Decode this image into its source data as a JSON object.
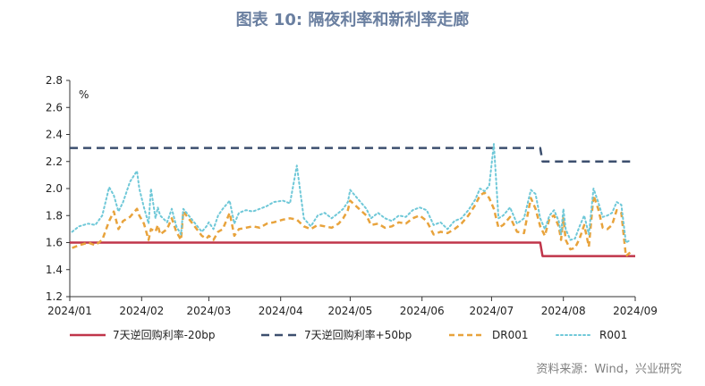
{
  "title": "图表 10: 隔夜利率和新利率走廊",
  "source": "资料来源：Wind，兴业研究",
  "chart_data": {
    "type": "line",
    "unit_label": "%",
    "ylim": [
      1.2,
      2.8
    ],
    "yticks": [
      "1.2",
      "1.4",
      "1.6",
      "1.8",
      "2.0",
      "2.2",
      "2.4",
      "2.6",
      "2.8"
    ],
    "xlim": [
      "2024-01-01",
      "2024-09-01"
    ],
    "xticks": [
      {
        "date": "2024-01-01",
        "label": "2024/01"
      },
      {
        "date": "2024-02-01",
        "label": "2024/02"
      },
      {
        "date": "2024-03-01",
        "label": "2024/03"
      },
      {
        "date": "2024-04-01",
        "label": "2024/04"
      },
      {
        "date": "2024-05-01",
        "label": "2024/05"
      },
      {
        "date": "2024-06-01",
        "label": "2024/06"
      },
      {
        "date": "2024-07-01",
        "label": "2024/07"
      },
      {
        "date": "2024-08-01",
        "label": "2024/08"
      },
      {
        "date": "2024-09-01",
        "label": "2024/09"
      }
    ],
    "grid": false,
    "legend_position": "bottom",
    "series": [
      {
        "name": "7天逆回购利率-20bp",
        "color": "#c0354a",
        "style": "solid",
        "points": [
          [
            "2024-01-01",
            1.6
          ],
          [
            "2024-07-22",
            1.6
          ],
          [
            "2024-07-23",
            1.5
          ],
          [
            "2024-09-01",
            1.5
          ]
        ]
      },
      {
        "name": "7天逆回购利率+50bp",
        "color": "#3c4f6e",
        "style": "dash",
        "points": [
          [
            "2024-01-01",
            2.3
          ],
          [
            "2024-07-22",
            2.3
          ],
          [
            "2024-07-23",
            2.2
          ],
          [
            "2024-09-01",
            2.2
          ]
        ]
      },
      {
        "name": "DR001",
        "color": "#e8a33c",
        "style": "dash",
        "points": [
          [
            "2024-01-02",
            1.56
          ],
          [
            "2024-01-05",
            1.58
          ],
          [
            "2024-01-09",
            1.6
          ],
          [
            "2024-01-12",
            1.58
          ],
          [
            "2024-01-15",
            1.62
          ],
          [
            "2024-01-18",
            1.76
          ],
          [
            "2024-01-20",
            1.83
          ],
          [
            "2024-01-22",
            1.7
          ],
          [
            "2024-01-24",
            1.76
          ],
          [
            "2024-01-27",
            1.79
          ],
          [
            "2024-01-30",
            1.85
          ],
          [
            "2024-01-31",
            1.8
          ],
          [
            "2024-02-02",
            1.74
          ],
          [
            "2024-02-04",
            1.62
          ],
          [
            "2024-02-05",
            1.7
          ],
          [
            "2024-02-07",
            1.68
          ],
          [
            "2024-02-08",
            1.73
          ],
          [
            "2024-02-09",
            1.66
          ],
          [
            "2024-02-12",
            1.7
          ],
          [
            "2024-02-14",
            1.78
          ],
          [
            "2024-02-16",
            1.68
          ],
          [
            "2024-02-18",
            1.62
          ],
          [
            "2024-02-19",
            1.83
          ],
          [
            "2024-02-27",
            1.65
          ],
          [
            "2024-02-29",
            1.63
          ],
          [
            "2024-03-01",
            1.65
          ],
          [
            "2024-03-03",
            1.62
          ],
          [
            "2024-03-05",
            1.68
          ],
          [
            "2024-03-07",
            1.7
          ],
          [
            "2024-03-10",
            1.82
          ],
          [
            "2024-03-12",
            1.65
          ],
          [
            "2024-03-14",
            1.7
          ],
          [
            "2024-03-17",
            1.71
          ],
          [
            "2024-03-20",
            1.72
          ],
          [
            "2024-03-23",
            1.71
          ],
          [
            "2024-03-26",
            1.74
          ],
          [
            "2024-03-29",
            1.75
          ],
          [
            "2024-04-02",
            1.77
          ],
          [
            "2024-04-05",
            1.78
          ],
          [
            "2024-04-08",
            1.77
          ],
          [
            "2024-04-11",
            1.72
          ],
          [
            "2024-04-14",
            1.7
          ],
          [
            "2024-04-17",
            1.73
          ],
          [
            "2024-04-20",
            1.72
          ],
          [
            "2024-04-23",
            1.71
          ],
          [
            "2024-04-26",
            1.74
          ],
          [
            "2024-04-28",
            1.78
          ],
          [
            "2024-04-30",
            1.84
          ],
          [
            "2024-05-01",
            1.91
          ],
          [
            "2024-05-08",
            1.8
          ],
          [
            "2024-05-10",
            1.73
          ],
          [
            "2024-05-13",
            1.74
          ],
          [
            "2024-05-16",
            1.71
          ],
          [
            "2024-05-19",
            1.72
          ],
          [
            "2024-05-22",
            1.75
          ],
          [
            "2024-05-25",
            1.74
          ],
          [
            "2024-05-28",
            1.78
          ],
          [
            "2024-05-31",
            1.8
          ],
          [
            "2024-06-03",
            1.76
          ],
          [
            "2024-06-06",
            1.66
          ],
          [
            "2024-06-09",
            1.68
          ],
          [
            "2024-06-12",
            1.67
          ],
          [
            "2024-06-15",
            1.7
          ],
          [
            "2024-06-18",
            1.74
          ],
          [
            "2024-06-21",
            1.8
          ],
          [
            "2024-06-24",
            1.88
          ],
          [
            "2024-06-26",
            1.95
          ],
          [
            "2024-06-28",
            1.97
          ],
          [
            "2024-06-30",
            1.93
          ],
          [
            "2024-07-02",
            1.85
          ],
          [
            "2024-07-04",
            1.71
          ],
          [
            "2024-07-06",
            1.73
          ],
          [
            "2024-07-09",
            1.79
          ],
          [
            "2024-07-12",
            1.68
          ],
          [
            "2024-07-15",
            1.67
          ],
          [
            "2024-07-18",
            1.93
          ],
          [
            "2024-07-20",
            1.85
          ],
          [
            "2024-07-22",
            1.72
          ],
          [
            "2024-07-24",
            1.65
          ],
          [
            "2024-07-26",
            1.78
          ],
          [
            "2024-07-28",
            1.8
          ],
          [
            "2024-07-30",
            1.72
          ],
          [
            "2024-07-31",
            1.62
          ],
          [
            "2024-08-01",
            1.78
          ],
          [
            "2024-08-02",
            1.62
          ],
          [
            "2024-08-04",
            1.55
          ],
          [
            "2024-08-06",
            1.56
          ],
          [
            "2024-08-08",
            1.63
          ],
          [
            "2024-08-10",
            1.73
          ],
          [
            "2024-08-12",
            1.57
          ],
          [
            "2024-08-14",
            1.95
          ],
          [
            "2024-08-16",
            1.85
          ],
          [
            "2024-08-18",
            1.71
          ],
          [
            "2024-08-20",
            1.7
          ],
          [
            "2024-08-22",
            1.73
          ],
          [
            "2024-08-24",
            1.84
          ],
          [
            "2024-08-26",
            1.82
          ],
          [
            "2024-08-28",
            1.5
          ],
          [
            "2024-08-30",
            1.53
          ]
        ]
      },
      {
        "name": "R001",
        "color": "#6fc8d8",
        "style": "dot",
        "points": [
          [
            "2024-01-02",
            1.68
          ],
          [
            "2024-01-05",
            1.72
          ],
          [
            "2024-01-09",
            1.74
          ],
          [
            "2024-01-12",
            1.73
          ],
          [
            "2024-01-15",
            1.8
          ],
          [
            "2024-01-18",
            2.01
          ],
          [
            "2024-01-20",
            1.95
          ],
          [
            "2024-01-22",
            1.83
          ],
          [
            "2024-01-24",
            1.9
          ],
          [
            "2024-01-27",
            2.05
          ],
          [
            "2024-01-30",
            2.13
          ],
          [
            "2024-01-31",
            2.0
          ],
          [
            "2024-02-02",
            1.86
          ],
          [
            "2024-02-04",
            1.74
          ],
          [
            "2024-02-05",
            2.0
          ],
          [
            "2024-02-07",
            1.78
          ],
          [
            "2024-02-08",
            1.86
          ],
          [
            "2024-02-09",
            1.8
          ],
          [
            "2024-02-12",
            1.75
          ],
          [
            "2024-02-14",
            1.85
          ],
          [
            "2024-02-16",
            1.72
          ],
          [
            "2024-02-18",
            1.66
          ],
          [
            "2024-02-19",
            1.85
          ],
          [
            "2024-02-27",
            1.68
          ],
          [
            "2024-02-29",
            1.72
          ],
          [
            "2024-03-01",
            1.75
          ],
          [
            "2024-03-03",
            1.7
          ],
          [
            "2024-03-05",
            1.8
          ],
          [
            "2024-03-07",
            1.85
          ],
          [
            "2024-03-10",
            1.91
          ],
          [
            "2024-03-12",
            1.74
          ],
          [
            "2024-03-14",
            1.82
          ],
          [
            "2024-03-17",
            1.84
          ],
          [
            "2024-03-20",
            1.83
          ],
          [
            "2024-03-23",
            1.85
          ],
          [
            "2024-03-26",
            1.87
          ],
          [
            "2024-03-29",
            1.9
          ],
          [
            "2024-04-02",
            1.91
          ],
          [
            "2024-04-05",
            1.89
          ],
          [
            "2024-04-08",
            2.17
          ],
          [
            "2024-04-11",
            1.78
          ],
          [
            "2024-04-14",
            1.72
          ],
          [
            "2024-04-17",
            1.8
          ],
          [
            "2024-04-20",
            1.82
          ],
          [
            "2024-04-23",
            1.78
          ],
          [
            "2024-04-26",
            1.82
          ],
          [
            "2024-04-28",
            1.85
          ],
          [
            "2024-04-30",
            1.9
          ],
          [
            "2024-05-01",
            1.99
          ],
          [
            "2024-05-08",
            1.85
          ],
          [
            "2024-05-10",
            1.78
          ],
          [
            "2024-05-13",
            1.82
          ],
          [
            "2024-05-16",
            1.78
          ],
          [
            "2024-05-19",
            1.76
          ],
          [
            "2024-05-22",
            1.8
          ],
          [
            "2024-05-25",
            1.79
          ],
          [
            "2024-05-28",
            1.84
          ],
          [
            "2024-05-31",
            1.86
          ],
          [
            "2024-06-03",
            1.84
          ],
          [
            "2024-06-06",
            1.73
          ],
          [
            "2024-06-09",
            1.75
          ],
          [
            "2024-06-12",
            1.7
          ],
          [
            "2024-06-15",
            1.76
          ],
          [
            "2024-06-18",
            1.78
          ],
          [
            "2024-06-21",
            1.84
          ],
          [
            "2024-06-24",
            1.92
          ],
          [
            "2024-06-26",
            2.0
          ],
          [
            "2024-06-28",
            1.98
          ],
          [
            "2024-06-30",
            2.02
          ],
          [
            "2024-07-02",
            2.33
          ],
          [
            "2024-07-04",
            1.78
          ],
          [
            "2024-07-06",
            1.8
          ],
          [
            "2024-07-09",
            1.86
          ],
          [
            "2024-07-12",
            1.74
          ],
          [
            "2024-07-15",
            1.78
          ],
          [
            "2024-07-18",
            1.99
          ],
          [
            "2024-07-20",
            1.96
          ],
          [
            "2024-07-22",
            1.78
          ],
          [
            "2024-07-24",
            1.7
          ],
          [
            "2024-07-26",
            1.8
          ],
          [
            "2024-07-28",
            1.84
          ],
          [
            "2024-07-30",
            1.76
          ],
          [
            "2024-07-31",
            1.66
          ],
          [
            "2024-08-01",
            1.85
          ],
          [
            "2024-08-02",
            1.7
          ],
          [
            "2024-08-04",
            1.62
          ],
          [
            "2024-08-06",
            1.63
          ],
          [
            "2024-08-08",
            1.72
          ],
          [
            "2024-08-10",
            1.8
          ],
          [
            "2024-08-12",
            1.66
          ],
          [
            "2024-08-14",
            2.0
          ],
          [
            "2024-08-16",
            1.9
          ],
          [
            "2024-08-18",
            1.79
          ],
          [
            "2024-08-20",
            1.8
          ],
          [
            "2024-08-22",
            1.82
          ],
          [
            "2024-08-24",
            1.9
          ],
          [
            "2024-08-26",
            1.88
          ],
          [
            "2024-08-28",
            1.6
          ],
          [
            "2024-08-30",
            1.62
          ]
        ]
      }
    ]
  }
}
